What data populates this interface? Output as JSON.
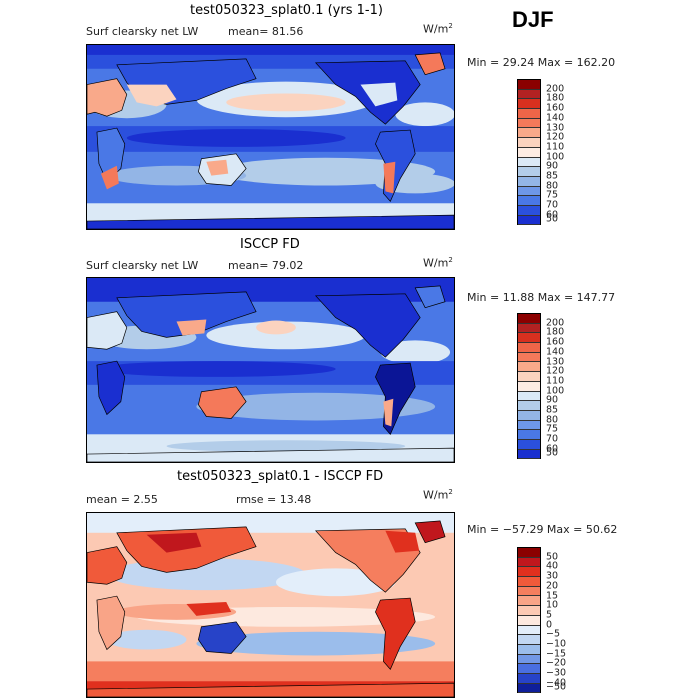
{
  "season": "DJF",
  "panels": [
    {
      "title": "test050323_splat0.1 (yrs 1-1)",
      "variable": "Surf clearsky net LW",
      "mean_text": "mean=  81.56",
      "units_text": "W/m",
      "units_sup": "2",
      "minmax_text": "Min =  29.24 Max = 162.20",
      "colorbar_labels": [
        "200",
        "180",
        "160",
        "140",
        "130",
        "120",
        "110",
        "100",
        "90",
        "85",
        "80",
        "75",
        "70",
        "60",
        "50"
      ]
    },
    {
      "title": "ISCCP FD",
      "variable": "Surf clearsky net LW",
      "mean_text": "mean=  79.02",
      "units_text": "W/m",
      "units_sup": "2",
      "minmax_text": "Min =  11.88 Max = 147.77",
      "colorbar_labels": [
        "200",
        "180",
        "160",
        "140",
        "130",
        "120",
        "110",
        "100",
        "90",
        "85",
        "80",
        "75",
        "70",
        "60",
        "50"
      ]
    },
    {
      "title": "test050323_splat0.1 - ISCCP FD",
      "mean_text": "mean =    2.55",
      "rmse_text": "rmse =  13.48",
      "units_text": "W/m",
      "units_sup": "2",
      "minmax_text": "Min = −57.29 Max =  50.62",
      "colorbar_labels": [
        "50",
        "40",
        "30",
        "20",
        "15",
        "10",
        "5",
        "0",
        "−5",
        "−10",
        "−15",
        "−20",
        "−30",
        "−40",
        "−50"
      ]
    }
  ],
  "colors": {
    "field_scale": [
      "#8b0000",
      "#b22222",
      "#d7301f",
      "#ef6548",
      "#f4795a",
      "#f9a98a",
      "#fbd3bf",
      "#fdece3",
      "#dbe9f6",
      "#b3cde9",
      "#93b5e6",
      "#6e97e8",
      "#4a78e6",
      "#2b50dd",
      "#1a2fd0",
      "#0b1596"
    ],
    "diff_scale": [
      "#8b0000",
      "#c0171d",
      "#e0301e",
      "#f05a3a",
      "#f57e5e",
      "#f9a487",
      "#fcc9b3",
      "#fde9df",
      "#e3eefa",
      "#c2d7f2",
      "#9bbdeb",
      "#7298e6",
      "#4a6fe0",
      "#2743c8",
      "#0f1f9a"
    ],
    "land_outline": "#000000"
  }
}
